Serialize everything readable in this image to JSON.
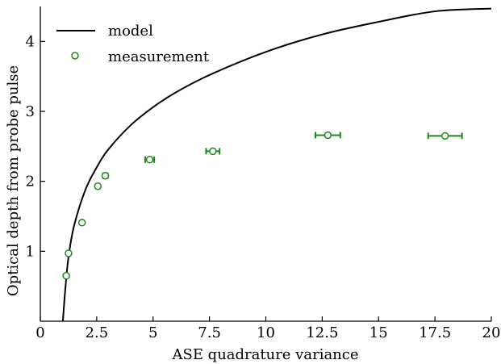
{
  "chart_data": {
    "type": "scatter",
    "title": "",
    "xlabel": "ASE quadrature variance",
    "ylabel": "Optical depth from probe pulse",
    "xlim": [
      0,
      20
    ],
    "ylim": [
      0,
      4.5
    ],
    "xticks": [
      0,
      2.5,
      5,
      7.5,
      10,
      12.5,
      15,
      17.5,
      20
    ],
    "xtick_labels": [
      "0",
      "2.5",
      "5",
      "7.5",
      "10",
      "12.5",
      "15",
      "17.5",
      "20"
    ],
    "yticks": [
      1,
      2,
      3,
      4
    ],
    "ytick_labels": [
      "1",
      "2",
      "3",
      "4"
    ],
    "grid": false,
    "legend_position": "top-left",
    "series": [
      {
        "name": "model",
        "kind": "line",
        "color": "#000000",
        "x": [
          1.0,
          1.1,
          1.25,
          1.5,
          2.0,
          2.5,
          3.0,
          4.0,
          5.0,
          6.0,
          7.5,
          10.0,
          12.5,
          15.0,
          17.5,
          20.0
        ],
        "y": [
          0.0,
          0.43,
          0.92,
          1.37,
          1.88,
          2.2,
          2.45,
          2.8,
          3.06,
          3.27,
          3.52,
          3.85,
          4.1,
          4.28,
          4.43,
          4.47
        ]
      },
      {
        "name": "measurement",
        "kind": "scatter",
        "color": "#1a8a1a",
        "points": [
          {
            "x": 1.15,
            "y": 0.65,
            "xerr": 0.0
          },
          {
            "x": 1.25,
            "y": 0.97,
            "xerr": 0.0
          },
          {
            "x": 1.85,
            "y": 1.41,
            "xerr": 0.05
          },
          {
            "x": 2.55,
            "y": 1.93,
            "xerr": 0.05
          },
          {
            "x": 2.88,
            "y": 2.08,
            "xerr": 0.1
          },
          {
            "x": 4.85,
            "y": 2.31,
            "xerr": 0.2
          },
          {
            "x": 7.65,
            "y": 2.43,
            "xerr": 0.3
          },
          {
            "x": 12.75,
            "y": 2.66,
            "xerr": 0.55
          },
          {
            "x": 17.95,
            "y": 2.65,
            "xerr": 0.75
          }
        ]
      }
    ]
  }
}
